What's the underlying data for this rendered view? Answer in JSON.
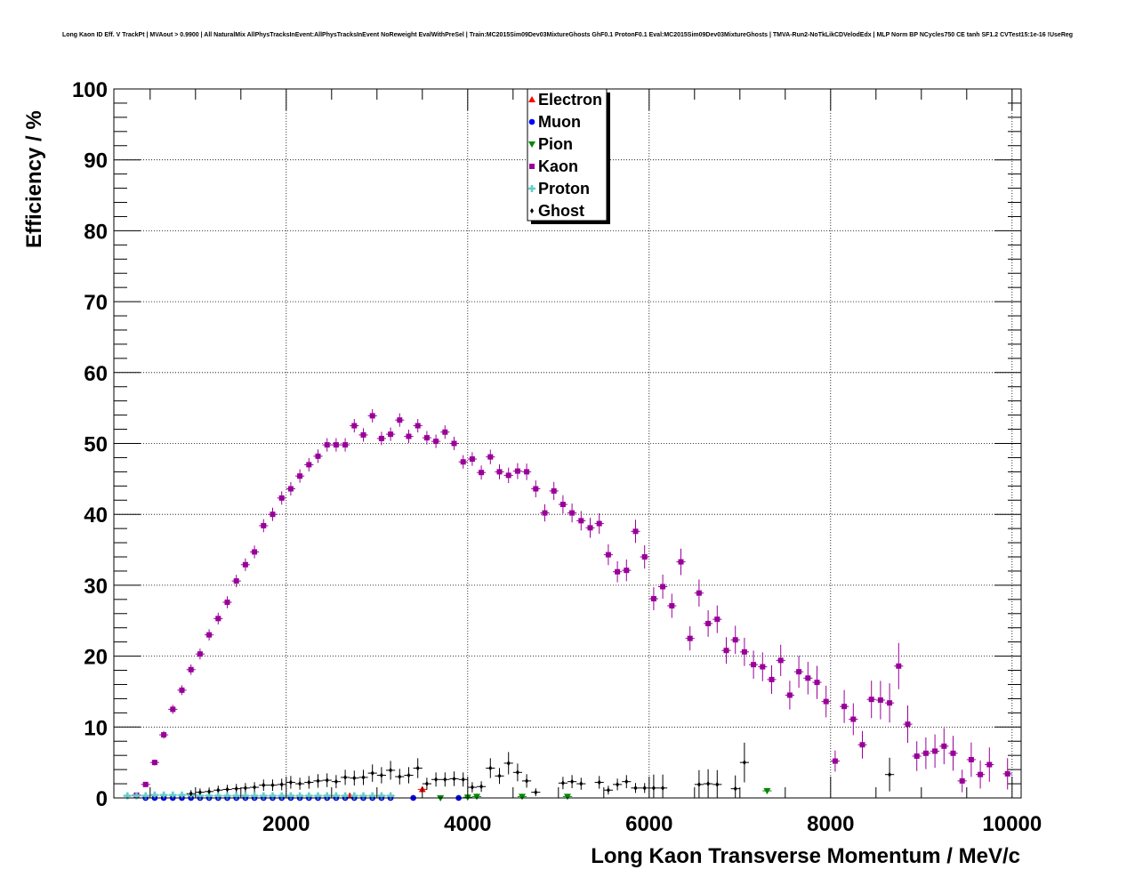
{
  "chart_data": {
    "type": "scatter",
    "title": "Long Kaon ID Eff. V TrackPt | MVAout > 0.9900 | All NaturalMix AllPhysTracksInEvent:AllPhysTracksInEvent NoReweight EvalWithPreSel | Train:MC2015Sim09Dev03MixtureGhosts GhF0.1 ProtonF0.1 Eval:MC2015Sim09Dev03MixtureGhosts | TMVA-Run2-NoTkLikCDVelodEdx | MLP Norm BP NCycles750 CE tanh SF1.2 CVTest15:1e-16 !UseReg",
    "xlabel": "Long Kaon Transverse Momentum / MeV/c",
    "ylabel": "Efficiency / %",
    "xlim": [
      100,
      10100
    ],
    "ylim": [
      0,
      100
    ],
    "x_ticks": [
      2000,
      4000,
      6000,
      8000,
      10000
    ],
    "y_ticks": [
      0,
      10,
      20,
      30,
      40,
      50,
      60,
      70,
      80,
      90,
      100
    ],
    "grid": true,
    "legend_position": "top-center",
    "series": [
      {
        "name": "Electron",
        "color": "#ff0000",
        "marker": "triangle-up",
        "points": [
          [
            2700,
            0.3
          ],
          [
            3500,
            1.2
          ]
        ]
      },
      {
        "name": "Muon",
        "color": "#0000ff",
        "marker": "circle",
        "points": [
          [
            450,
            0
          ],
          [
            550,
            0
          ],
          [
            650,
            0
          ],
          [
            750,
            0
          ],
          [
            850,
            0
          ],
          [
            950,
            0
          ],
          [
            1050,
            0
          ],
          [
            1150,
            0
          ],
          [
            1250,
            0
          ],
          [
            1350,
            0
          ],
          [
            1450,
            0
          ],
          [
            1550,
            0
          ],
          [
            1650,
            0
          ],
          [
            1750,
            0
          ],
          [
            1850,
            0
          ],
          [
            1950,
            0
          ],
          [
            2050,
            0
          ],
          [
            2150,
            0
          ],
          [
            2250,
            0
          ],
          [
            2350,
            0
          ],
          [
            2450,
            0
          ],
          [
            2550,
            0
          ],
          [
            2650,
            0
          ],
          [
            2750,
            0
          ],
          [
            2850,
            0
          ],
          [
            2950,
            0
          ],
          [
            3050,
            0
          ],
          [
            3150,
            0
          ],
          [
            3400,
            0
          ],
          [
            3900,
            0
          ]
        ]
      },
      {
        "name": "Pion",
        "color": "#008800",
        "marker": "triangle-down",
        "points": [
          [
            3700,
            0
          ],
          [
            4000,
            0.1
          ],
          [
            4100,
            0.2
          ],
          [
            4600,
            0.2
          ],
          [
            5100,
            0.2
          ],
          [
            7300,
            1.0
          ]
        ]
      },
      {
        "name": "Kaon",
        "color": "#990099",
        "marker": "square",
        "points": [
          [
            350,
            0.4
          ],
          [
            450,
            1.9
          ],
          [
            550,
            5.0
          ],
          [
            650,
            8.9
          ],
          [
            750,
            12.5
          ],
          [
            850,
            15.2
          ],
          [
            950,
            18.1
          ],
          [
            1050,
            20.3
          ],
          [
            1150,
            23.0
          ],
          [
            1250,
            25.3
          ],
          [
            1350,
            27.6
          ],
          [
            1450,
            30.6
          ],
          [
            1550,
            32.9
          ],
          [
            1650,
            34.7
          ],
          [
            1750,
            38.4
          ],
          [
            1850,
            40.0
          ],
          [
            1950,
            42.3
          ],
          [
            2050,
            43.6
          ],
          [
            2150,
            45.4
          ],
          [
            2250,
            47.0
          ],
          [
            2350,
            48.2
          ],
          [
            2450,
            49.8
          ],
          [
            2550,
            49.8
          ],
          [
            2650,
            49.8
          ],
          [
            2750,
            52.5
          ],
          [
            2850,
            51.2
          ],
          [
            2950,
            53.9
          ],
          [
            3050,
            50.7
          ],
          [
            3150,
            51.3
          ],
          [
            3250,
            53.3
          ],
          [
            3350,
            51.0
          ],
          [
            3450,
            52.5
          ],
          [
            3550,
            50.8
          ],
          [
            3650,
            50.3
          ],
          [
            3750,
            51.6
          ],
          [
            3850,
            50.0
          ],
          [
            3950,
            47.4
          ],
          [
            4050,
            47.8
          ],
          [
            4150,
            45.9
          ],
          [
            4250,
            48.1
          ],
          [
            4350,
            46.0
          ],
          [
            4450,
            45.5
          ],
          [
            4550,
            46.1
          ],
          [
            4650,
            46.0
          ],
          [
            4750,
            43.6
          ],
          [
            4850,
            40.2
          ],
          [
            4950,
            43.3
          ],
          [
            5050,
            41.4
          ],
          [
            5150,
            40.2
          ],
          [
            5250,
            39.1
          ],
          [
            5350,
            38.1
          ],
          [
            5450,
            38.7
          ],
          [
            5550,
            34.3
          ],
          [
            5650,
            31.9
          ],
          [
            5750,
            32.1
          ],
          [
            5850,
            37.6
          ],
          [
            5950,
            34.0
          ],
          [
            6050,
            28.1
          ],
          [
            6150,
            29.8
          ],
          [
            6250,
            27.1
          ],
          [
            6350,
            33.3
          ],
          [
            6450,
            22.5
          ],
          [
            6550,
            28.9
          ],
          [
            6650,
            24.6
          ],
          [
            6750,
            25.2
          ],
          [
            6850,
            20.8
          ],
          [
            6950,
            22.3
          ],
          [
            7050,
            20.6
          ],
          [
            7150,
            18.8
          ],
          [
            7250,
            18.5
          ],
          [
            7350,
            16.7
          ],
          [
            7450,
            19.4
          ],
          [
            7550,
            14.5
          ],
          [
            7650,
            17.8
          ],
          [
            7750,
            16.9
          ],
          [
            7850,
            16.3
          ],
          [
            7950,
            13.6
          ],
          [
            8050,
            5.2
          ],
          [
            8150,
            12.9
          ],
          [
            8250,
            11.1
          ],
          [
            8350,
            7.5
          ],
          [
            8450,
            13.9
          ],
          [
            8550,
            13.8
          ],
          [
            8650,
            13.4
          ],
          [
            8750,
            18.6
          ],
          [
            8850,
            10.4
          ],
          [
            8950,
            5.9
          ],
          [
            9050,
            6.3
          ],
          [
            9150,
            6.6
          ],
          [
            9250,
            7.3
          ],
          [
            9350,
            6.3
          ],
          [
            9450,
            2.4
          ],
          [
            9550,
            5.4
          ],
          [
            9650,
            3.3
          ],
          [
            9750,
            4.7
          ],
          [
            9950,
            3.4
          ]
        ]
      },
      {
        "name": "Proton",
        "color": "#66cccc",
        "marker": "cross",
        "points": [
          [
            250,
            0.3
          ],
          [
            350,
            0.3
          ],
          [
            450,
            0.3
          ],
          [
            550,
            0.4
          ],
          [
            650,
            0.4
          ],
          [
            750,
            0.4
          ],
          [
            850,
            0.4
          ],
          [
            950,
            0.4
          ],
          [
            1050,
            0.3
          ],
          [
            1150,
            0.3
          ],
          [
            1250,
            0.3
          ],
          [
            1350,
            0.3
          ],
          [
            1450,
            0.3
          ],
          [
            1550,
            0.3
          ],
          [
            1650,
            0.3
          ],
          [
            1750,
            0.3
          ],
          [
            1850,
            0.3
          ],
          [
            1950,
            0.3
          ],
          [
            2050,
            0.3
          ],
          [
            2150,
            0.3
          ],
          [
            2250,
            0.3
          ],
          [
            2350,
            0.3
          ],
          [
            2450,
            0.3
          ],
          [
            2550,
            0.3
          ],
          [
            2650,
            0.3
          ],
          [
            2750,
            0.3
          ],
          [
            2850,
            0.3
          ],
          [
            2950,
            0.3
          ],
          [
            3050,
            0.3
          ],
          [
            3150,
            0.3
          ]
        ]
      },
      {
        "name": "Ghost",
        "color": "#000000",
        "marker": "diamond",
        "points": [
          [
            950,
            0.6
          ],
          [
            1050,
            0.8
          ],
          [
            1150,
            0.9
          ],
          [
            1250,
            1.1
          ],
          [
            1350,
            1.2
          ],
          [
            1450,
            1.3
          ],
          [
            1550,
            1.4
          ],
          [
            1650,
            1.5
          ],
          [
            1750,
            1.8
          ],
          [
            1850,
            1.8
          ],
          [
            1950,
            1.9
          ],
          [
            2050,
            2.2
          ],
          [
            2150,
            2.0
          ],
          [
            2250,
            2.2
          ],
          [
            2350,
            2.4
          ],
          [
            2450,
            2.5
          ],
          [
            2550,
            2.3
          ],
          [
            2650,
            2.9
          ],
          [
            2750,
            2.8
          ],
          [
            2850,
            2.9
          ],
          [
            2950,
            3.5
          ],
          [
            3050,
            3.2
          ],
          [
            3150,
            3.9
          ],
          [
            3250,
            3.0
          ],
          [
            3350,
            3.2
          ],
          [
            3450,
            4.2
          ],
          [
            3550,
            2.0
          ],
          [
            3650,
            2.6
          ],
          [
            3750,
            2.6
          ],
          [
            3850,
            2.7
          ],
          [
            3950,
            2.6
          ],
          [
            4050,
            1.5
          ],
          [
            4150,
            1.6
          ],
          [
            4250,
            4.2
          ],
          [
            4350,
            3.1
          ],
          [
            4450,
            4.9
          ],
          [
            4550,
            3.6
          ],
          [
            4650,
            2.4
          ],
          [
            4750,
            0.8
          ],
          [
            5050,
            2.1
          ],
          [
            5150,
            2.3
          ],
          [
            5250,
            2.0
          ],
          [
            5450,
            2.2
          ],
          [
            5550,
            1.1
          ],
          [
            5650,
            1.9
          ],
          [
            5750,
            2.3
          ],
          [
            5850,
            1.4
          ],
          [
            5950,
            1.4
          ],
          [
            6050,
            1.4
          ],
          [
            6150,
            1.4
          ],
          [
            6550,
            1.9
          ],
          [
            6650,
            2.0
          ],
          [
            6750,
            1.9
          ],
          [
            6950,
            1.3
          ],
          [
            7050,
            5.0
          ],
          [
            8650,
            3.3
          ]
        ]
      }
    ]
  }
}
